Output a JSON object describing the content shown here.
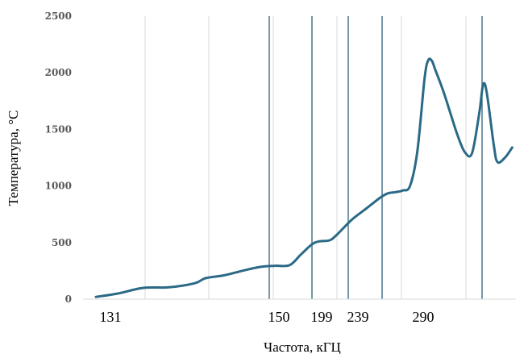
{
  "chart_data": {
    "type": "line",
    "xlabel": "Частота, кГЦ",
    "ylabel": "Температура, °C",
    "ylim": [
      0,
      2500
    ],
    "yticks": [
      "0",
      "500",
      "1000",
      "1500",
      "2000",
      "2500"
    ],
    "xticks": [
      "131",
      "150",
      "199",
      "239",
      "290"
    ],
    "grid": "vertical",
    "series": [
      {
        "color": "#2a6a86",
        "points": [
          [
            0.0,
            20
          ],
          [
            0.06,
            50
          ],
          [
            0.13,
            100
          ],
          [
            0.2,
            105
          ],
          [
            0.27,
            140
          ],
          [
            0.3,
            185
          ],
          [
            0.35,
            210
          ],
          [
            0.4,
            250
          ],
          [
            0.45,
            285
          ],
          [
            0.49,
            295
          ],
          [
            0.53,
            300
          ],
          [
            0.56,
            390
          ],
          [
            0.59,
            480
          ],
          [
            0.61,
            510
          ],
          [
            0.64,
            520
          ],
          [
            0.66,
            570
          ],
          [
            0.7,
            700
          ],
          [
            0.74,
            800
          ],
          [
            0.78,
            900
          ],
          [
            0.8,
            935
          ],
          [
            0.82,
            945
          ],
          [
            0.84,
            960
          ],
          [
            0.86,
            1000
          ],
          [
            0.88,
            1300
          ],
          [
            0.9,
            1950
          ],
          [
            0.91,
            2110
          ],
          [
            0.92,
            2105
          ],
          [
            0.93,
            2020
          ],
          [
            0.95,
            1850
          ],
          [
            0.97,
            1650
          ],
          [
            0.99,
            1450
          ],
          [
            1.01,
            1300
          ],
          [
            1.03,
            1290
          ],
          [
            1.05,
            1650
          ],
          [
            1.06,
            1890
          ],
          [
            1.07,
            1830
          ],
          [
            1.09,
            1350
          ],
          [
            1.1,
            1210
          ],
          [
            1.12,
            1250
          ],
          [
            1.14,
            1340
          ]
        ]
      }
    ],
    "vertical_markers": 5
  }
}
